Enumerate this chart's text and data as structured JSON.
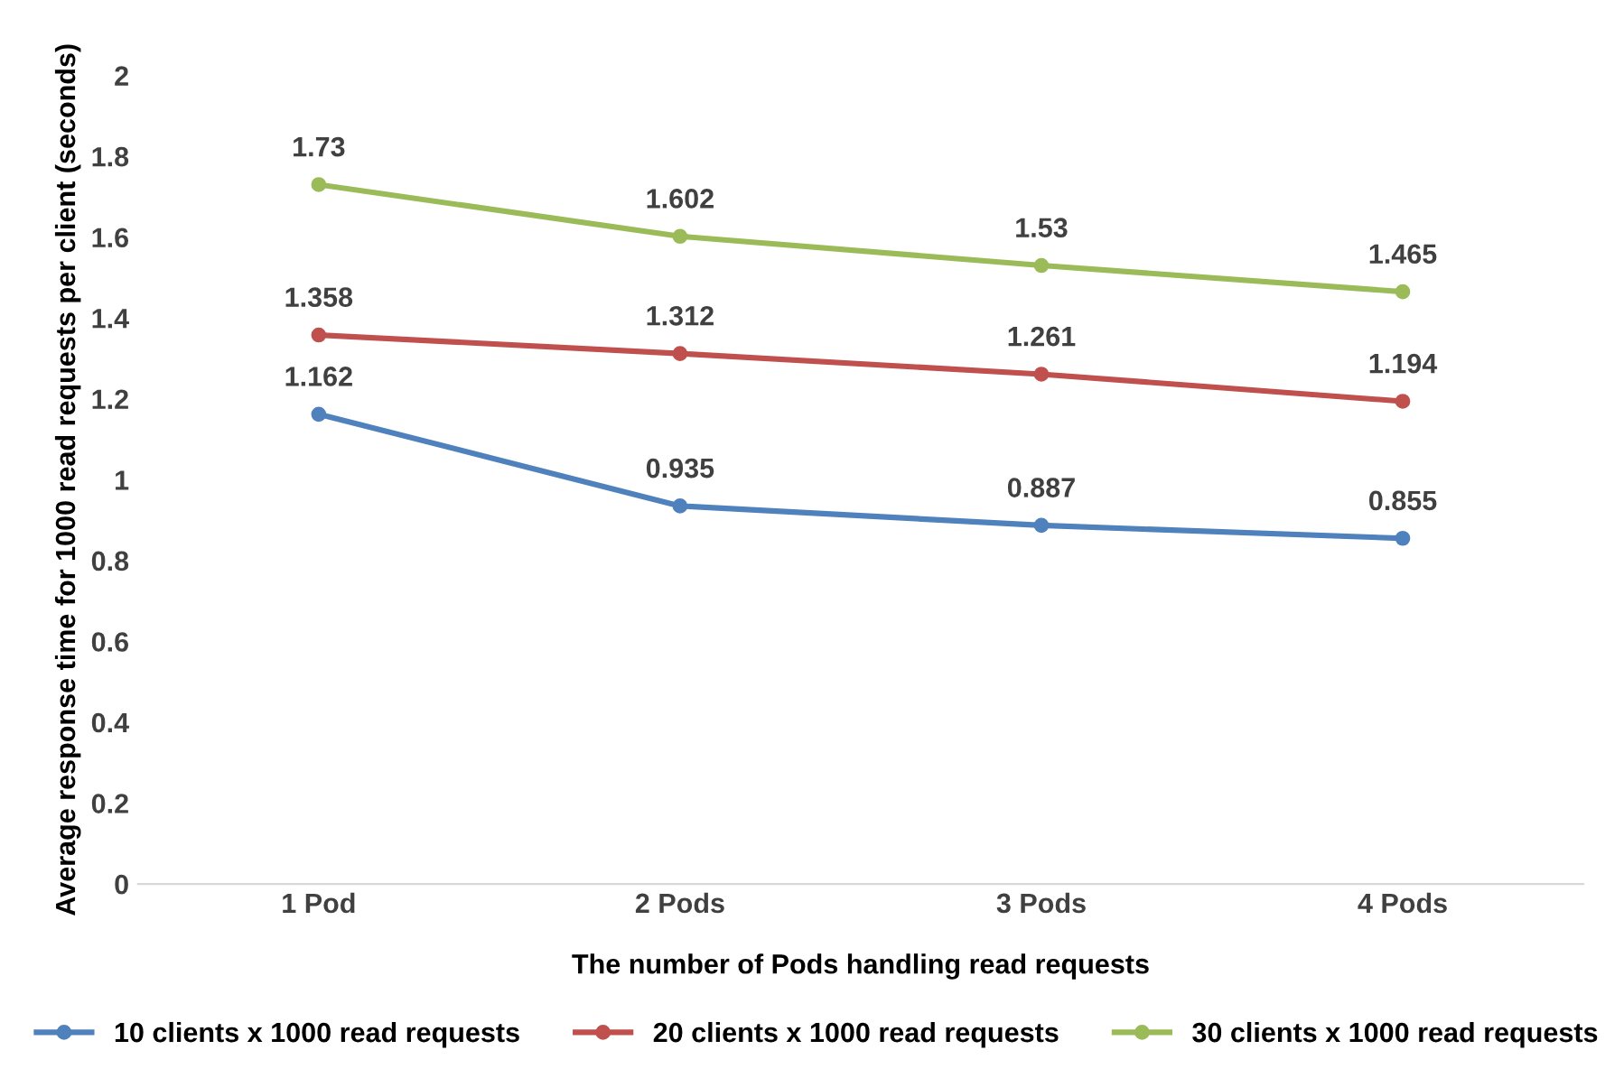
{
  "chart_data": {
    "type": "line",
    "xlabel": "The number of Pods handling read requests",
    "ylabel": "Average response time for 1000 read requests per client (seconds)",
    "categories": [
      "1 Pod",
      "2 Pods",
      "3 Pods",
      "4 Pods"
    ],
    "series": [
      {
        "name": "10 clients x 1000 read requests",
        "color": "#4f81bd",
        "values": [
          1.162,
          0.935,
          0.887,
          0.855
        ]
      },
      {
        "name": "20 clients x 1000 read requests",
        "color": "#c0504d",
        "values": [
          1.358,
          1.312,
          1.261,
          1.194
        ]
      },
      {
        "name": "30 clients x 1000 read requests",
        "color": "#9bbb59",
        "values": [
          1.73,
          1.602,
          1.53,
          1.465
        ]
      }
    ],
    "ylim": [
      0,
      2
    ],
    "yticks": [
      0,
      0.2,
      0.4,
      0.6,
      0.8,
      1,
      1.2,
      1.4,
      1.6,
      1.8,
      2
    ],
    "data_labels": true,
    "marker": "circle",
    "line_style": "solid",
    "legend": "bottom",
    "grid": false
  }
}
